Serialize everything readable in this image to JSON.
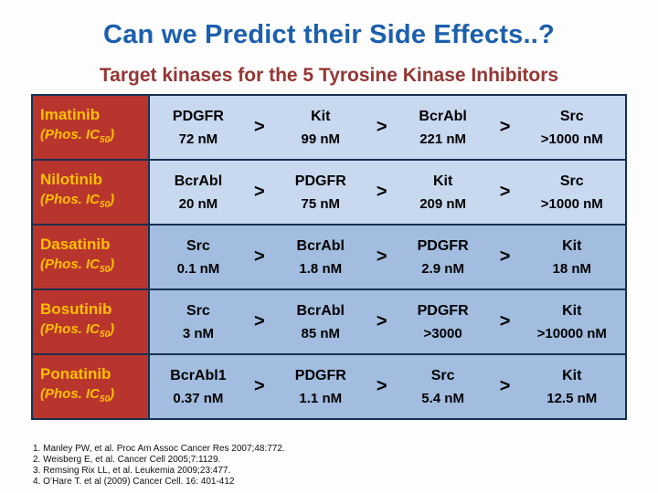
{
  "slide": {
    "title": "Can we Predict their Side Effects..?",
    "subtitle": "Target kinases for the 5 Tyrosine Kinase Inhibitors"
  },
  "table": {
    "separator": ">",
    "phos_prefix": "(Phos. IC",
    "phos_sub": "50",
    "phos_suffix": ")",
    "rows": [
      {
        "drug": "Imatinib",
        "kinases": [
          {
            "name": "PDGFR",
            "value": "72 nM"
          },
          {
            "name": "Kit",
            "value": "99 nM"
          },
          {
            "name": "BcrAbl",
            "value": "221 nM"
          },
          {
            "name": "Src",
            "value": ">1000 nM"
          }
        ]
      },
      {
        "drug": "Nilotinib",
        "kinases": [
          {
            "name": "BcrAbl",
            "value": "20 nM"
          },
          {
            "name": "PDGFR",
            "value": "75 nM"
          },
          {
            "name": "Kit",
            "value": "209 nM"
          },
          {
            "name": "Src",
            "value": ">1000 nM"
          }
        ]
      },
      {
        "drug": "Dasatinib",
        "kinases": [
          {
            "name": "Src",
            "value": "0.1 nM"
          },
          {
            "name": "BcrAbl",
            "value": "1.8 nM"
          },
          {
            "name": "PDGFR",
            "value": "2.9 nM"
          },
          {
            "name": "Kit",
            "value": "18 nM"
          }
        ]
      },
      {
        "drug": "Bosutinib",
        "kinases": [
          {
            "name": "Src",
            "value": "3 nM"
          },
          {
            "name": "BcrAbl",
            "value": "85 nM"
          },
          {
            "name": "PDGFR",
            "value": ">3000"
          },
          {
            "name": "Kit",
            "value": ">10000 nM"
          }
        ]
      },
      {
        "drug": "Ponatinib",
        "kinases": [
          {
            "name": "BcrAbl1",
            "value": "0.37 nM"
          },
          {
            "name": "PDGFR",
            "value": "1.1 nM"
          },
          {
            "name": "Src",
            "value": "5.4 nM"
          },
          {
            "name": "Kit",
            "value": "12.5 nM"
          }
        ]
      }
    ]
  },
  "references": [
    "1. Manley PW, et al. Proc Am Assoc Cancer Res 2007;48:772.",
    "2. Weisberg E, et al. Cancer Cell 2005;7:1129.",
    "3. Remsing Rix LL, et al. Leukemia 2009;23:477.",
    "4. O’Hare T. et al (2009) Cancer Cell. 16: 401-412"
  ]
}
